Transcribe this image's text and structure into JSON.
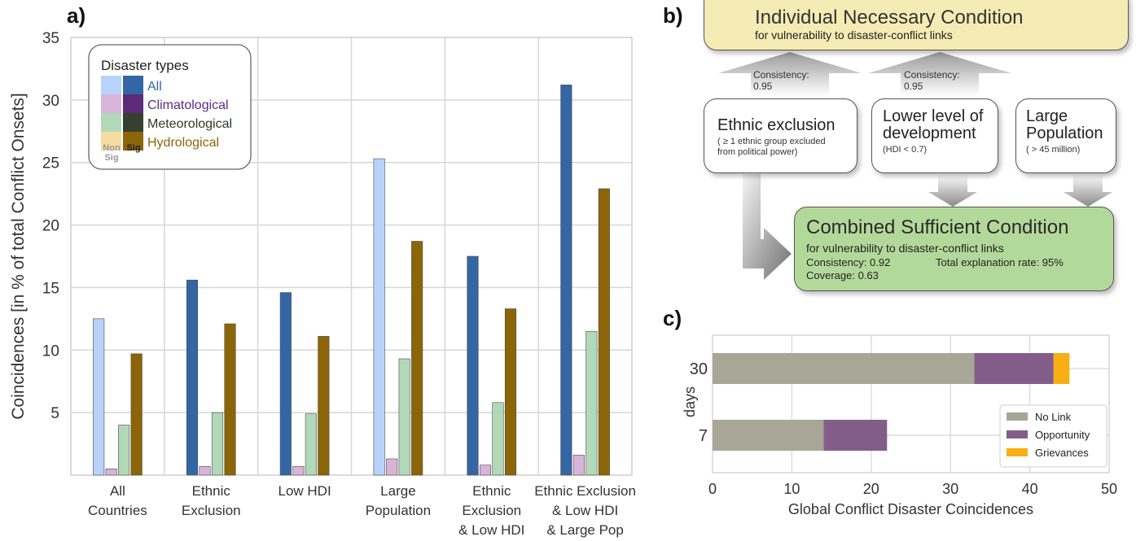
{
  "panel_a": {
    "letter": "a)",
    "chart_data": {
      "type": "bar",
      "ylabel": "Coincidences [in % of total Conflict Onsets]",
      "xlabel": "",
      "ylim": [
        0,
        35
      ],
      "yticks": [
        5,
        10,
        15,
        20,
        25,
        30,
        35
      ],
      "grid": true,
      "legend_placement": "top-left",
      "categories": [
        [
          "All",
          "Countries"
        ],
        [
          "Ethnic",
          "Exclusion"
        ],
        [
          "Low HDI"
        ],
        [
          "Large",
          "Population"
        ],
        [
          "Ethnic",
          "Exclusion",
          "& Low HDI"
        ],
        [
          "Ethnic Exclusion",
          "& Low HDI",
          "& Large Pop"
        ]
      ],
      "series": [
        {
          "name": "All",
          "values": [
            12.5,
            15.6,
            14.6,
            25.3,
            17.5,
            31.2
          ],
          "significant": [
            false,
            true,
            true,
            false,
            true,
            true
          ]
        },
        {
          "name": "Climatological",
          "values": [
            0.5,
            0.7,
            0.7,
            1.3,
            0.8,
            1.6
          ],
          "significant": [
            false,
            false,
            false,
            false,
            false,
            false
          ]
        },
        {
          "name": "Meteorological",
          "values": [
            4.0,
            5.0,
            4.9,
            9.3,
            5.8,
            11.5
          ],
          "significant": [
            false,
            false,
            false,
            false,
            false,
            false
          ]
        },
        {
          "name": "Hydrological",
          "values": [
            9.7,
            12.1,
            11.1,
            18.7,
            13.3,
            22.9
          ],
          "significant": [
            true,
            true,
            true,
            true,
            true,
            true
          ]
        }
      ],
      "legend": {
        "title": "Disaster types",
        "entries": [
          "All",
          "Climatological",
          "Meteorological",
          "Hydrological"
        ],
        "non_sig_label": [
          "Non",
          "Sig"
        ],
        "sig_label": "Sig"
      }
    },
    "colors": {
      "nonsig": [
        "#b7d3fb",
        "#d8b4d9",
        "#b2d9b7",
        "#f7dca2"
      ],
      "sig": [
        "#3366a4",
        "#5c2a78",
        "#36402f",
        "#8b6508"
      ],
      "label": [
        "#2b62b0",
        "#5c2a86",
        "#2e3a26",
        "#8b6508"
      ]
    }
  },
  "panel_b": {
    "letter": "b)",
    "necessary": {
      "title": "Individual Necessary Condition",
      "subtitle": "for vulnerability to disaster-conflict links"
    },
    "consistency_1": [
      "Consistency:",
      "0.95"
    ],
    "consistency_2": [
      "Consistency:",
      "0.95"
    ],
    "box_ethnic": {
      "title": "Ethnic exclusion",
      "sub": [
        "( ≥ 1 ethnic group excluded",
        "from political power)"
      ]
    },
    "box_dev": {
      "title": [
        "Lower level of",
        "development"
      ],
      "sub": "(HDI < 0.7)"
    },
    "box_pop": {
      "title": [
        "Large",
        "Population"
      ],
      "sub": "( > 45 million)"
    },
    "combined": {
      "title": "Combined Sufficient Condition",
      "subtitle": "for vulnerability to disaster-conflict links",
      "consistency": "Consistency: 0.92",
      "explanation": "Total explanation rate: 95%",
      "coverage": "Coverage: 0.63"
    }
  },
  "panel_c": {
    "letter": "c)",
    "chart_data": {
      "type": "bar",
      "orientation": "horizontal",
      "stacked": true,
      "ylabel": "days",
      "xlabel": "Global Conflict Disaster Coincidences",
      "categories": [
        "30",
        "7"
      ],
      "xlim": [
        0,
        50
      ],
      "xticks": [
        0,
        10,
        20,
        30,
        40,
        50
      ],
      "grid": true,
      "legend_placement": "bottom-right",
      "series": [
        {
          "name": "No Link",
          "values": [
            33,
            14
          ]
        },
        {
          "name": "Opportunity",
          "values": [
            10,
            8
          ]
        },
        {
          "name": "Grievances",
          "values": [
            2,
            0
          ]
        }
      ]
    },
    "colors": [
      "#a8a697",
      "#825d8a",
      "#f9ae14"
    ]
  }
}
